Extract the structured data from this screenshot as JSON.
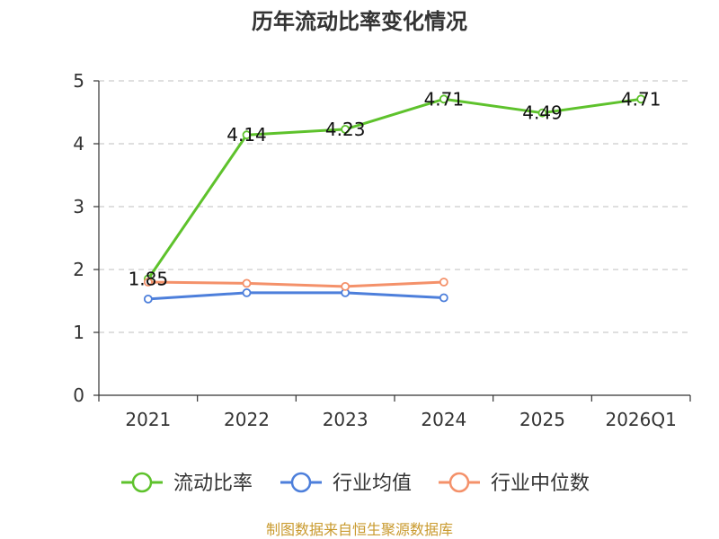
{
  "chart_data": {
    "type": "line",
    "title": "历年流动比率变化情况",
    "categories": [
      "2021",
      "2022",
      "2023",
      "2024",
      "2025",
      "2026Q1"
    ],
    "ylim": [
      0,
      5
    ],
    "yticks": [
      "0",
      "1",
      "2",
      "3",
      "4",
      "5"
    ],
    "grid": true,
    "legend_position": "bottom",
    "series": [
      {
        "name": "流动比率",
        "color": "#5ec22c",
        "values": [
          1.85,
          4.14,
          4.23,
          4.71,
          4.49,
          4.71
        ],
        "labels": [
          "1.85",
          "4.14",
          "4.23",
          "4.71",
          "4.49",
          "4.71"
        ]
      },
      {
        "name": "行业均值",
        "color": "#4d7fdb",
        "values": [
          1.53,
          1.63,
          1.63,
          1.55,
          null,
          null
        ]
      },
      {
        "name": "行业中位数",
        "color": "#f4916a",
        "values": [
          1.8,
          1.78,
          1.73,
          1.8,
          null,
          null
        ]
      }
    ],
    "source": "制图数据来自恒生聚源数据库"
  }
}
